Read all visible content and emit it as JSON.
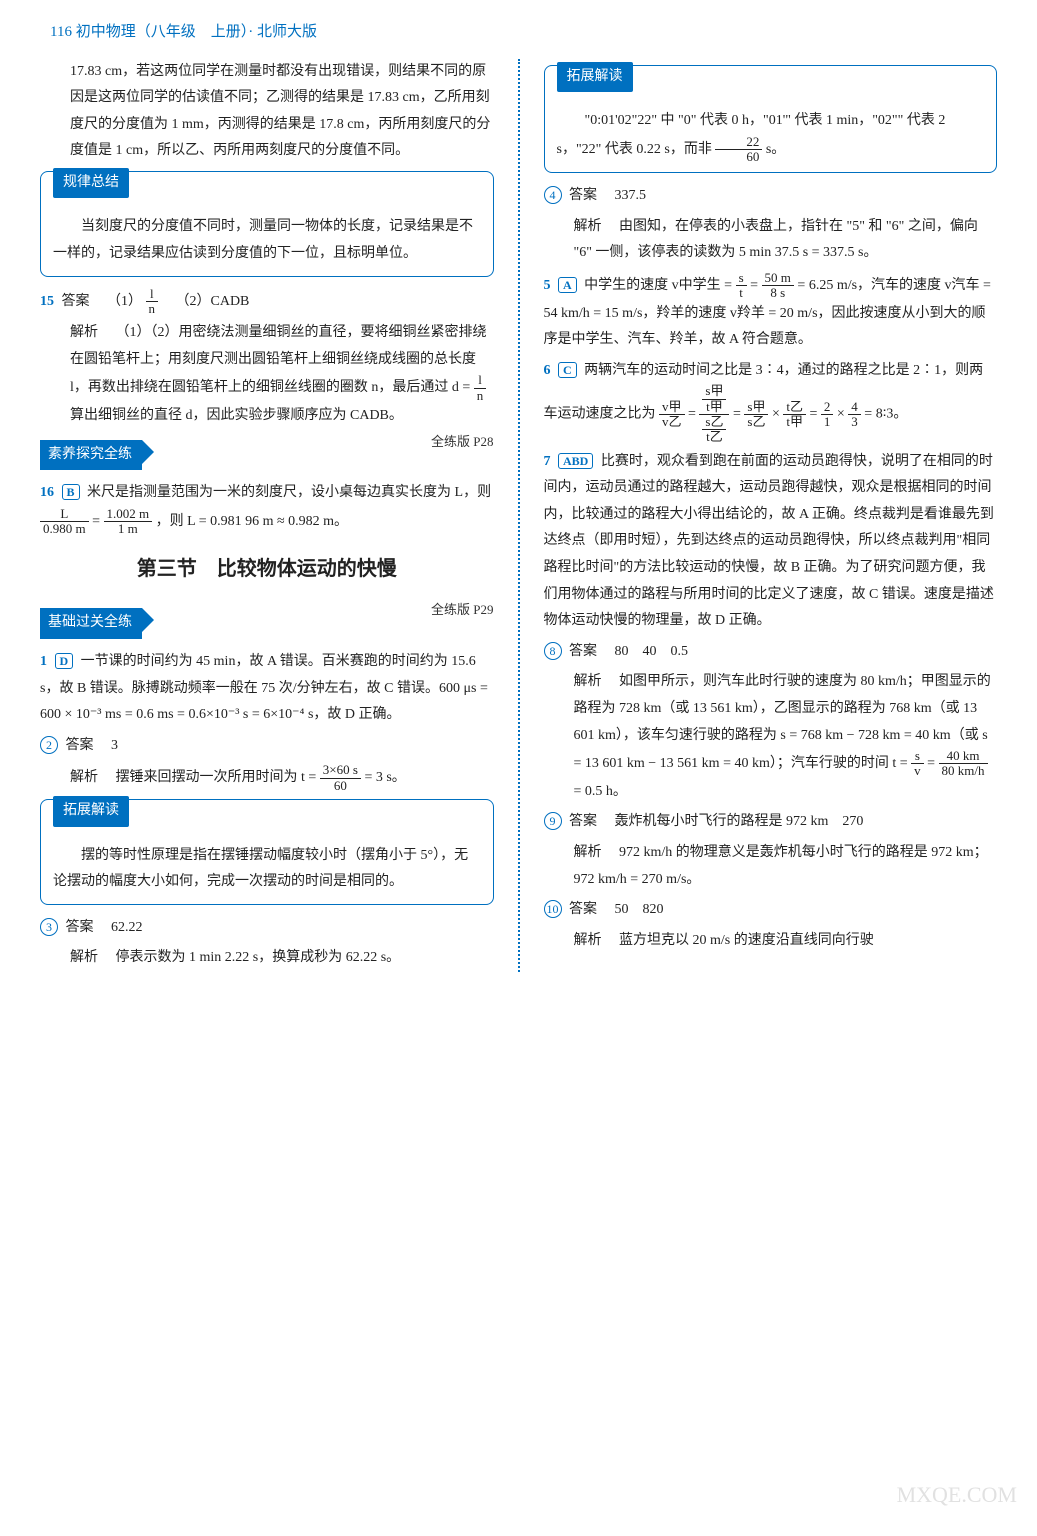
{
  "header": "116 初中物理（八年级　上册）· 北师大版",
  "left": {
    "p1": "17.83 cm，若这两位同学在测量时都没有出现错误，则结果不同的原因是这两位同学的估读值不同；乙测得的结果是 17.83 cm，乙所用刻度尺的分度值为 1 mm，丙测得的结果是 17.8 cm，丙所用刻度尺的分度值是 1 cm，所以乙、丙所用两刻度尺的分度值不同。",
    "box1_tag": "规律总结",
    "box1_text": "当刻度尺的分度值不同时，测量同一物体的长度，记录结果是不一样的，记录结果应估读到分度值的下一位，且标明单位。",
    "q15_num": "15",
    "q15_ans_label": "答案",
    "q15_ans": "（1）",
    "q15_frac_num": "l",
    "q15_frac_den": "n",
    "q15_ans2": "（2）CADB",
    "q15_expl_label": "解析",
    "q15_expl1": "（1）（2）用密绕法测量细铜丝的直径，要将细铜丝紧密排绕在圆铅笔杆上；用刻度尺测出圆铅笔杆上细铜丝绕成线圈的总长度 l，再数出排绕在圆铅笔杆上的细铜丝线圈的圈数 n，最后通过 d = ",
    "q15_expl2": " 算出细铜丝的直径 d，因此实验步骤顺序应为 CADB。",
    "sec1_tag": "素养探究全练",
    "sec1_ref": "全练版 P28",
    "q16_num": "16",
    "q16_let": "B",
    "q16_text1": "米尺是指测量范围为一米的刻度尺，设小桌每边真实长度为 L，则 ",
    "q16_f1n": "L",
    "q16_f1d": "0.980 m",
    "q16_eq": " = ",
    "q16_f2n": "1.002 m",
    "q16_f2d": "1 m",
    "q16_text2": "，则 L = 0.981 96 m ≈ 0.982 m。",
    "section_title": "第三节　比较物体运动的快慢",
    "sec2_tag": "基础过关全练",
    "sec2_ref": "全练版 P29",
    "q1_num": "1",
    "q1_let": "D",
    "q1_text": "一节课的时间约为 45 min，故 A 错误。百米赛跑的时间约为 15.6 s，故 B 错误。脉搏跳动频率一般在 75 次/分钟左右，故 C 错误。600 μs = 600 × 10⁻³ ms = 0.6 ms = 0.6×10⁻³ s = 6×10⁻⁴ s，故 D 正确。",
    "q2_num": "2",
    "q2_ans_label": "答案",
    "q2_ans": "3",
    "q2_expl_label": "解析",
    "q2_expl1": "摆锤来回摆动一次所用时间为 t = ",
    "q2_fn": "3×60 s",
    "q2_fd": "60",
    "q2_expl2": " = 3 s。",
    "box2_tag": "拓展解读",
    "box2_text": "摆的等时性原理是指在摆锤摆动幅度较小时（摆角小于 5°），无论摆动的幅度大小如何，完成一次摆动的时间是相同的。",
    "q3_num": "3",
    "q3_ans_label": "答案",
    "q3_ans": "62.22",
    "q3_expl_label": "解析",
    "q3_expl": "停表示数为 1 min 2.22 s，换算成秒为 62.22 s。"
  },
  "right": {
    "box1_tag": "拓展解读",
    "box1_text1": "\"0:01'02\"22\" 中 \"0\" 代表 0 h，\"01'\" 代表 1 min，\"02\"\" 代表 2 s，\"22\" 代表 0.22 s，而非 ",
    "box1_fn": "22",
    "box1_fd": "60",
    "box1_text2": " s。",
    "q4_num": "4",
    "q4_ans_label": "答案",
    "q4_ans": "337.5",
    "q4_expl_label": "解析",
    "q4_expl": "由图知，在停表的小表盘上，指针在 \"5\" 和 \"6\" 之间，偏向 \"6\" 一侧，该停表的读数为 5 min 37.5 s = 337.5 s。",
    "q5_num": "5",
    "q5_let": "A",
    "q5_text1": "中学生的速度 v中学生 = ",
    "q5_f1n": "s",
    "q5_f1d": "t",
    "q5_eq1": " = ",
    "q5_f2n": "50 m",
    "q5_f2d": "8 s",
    "q5_text2": " = 6.25 m/s，汽车的速度 v汽车 = 54 km/h = 15 m/s，羚羊的速度 v羚羊 = 20 m/s，因此按速度从小到大的顺序是中学生、汽车、羚羊，故 A 符合题意。",
    "q6_num": "6",
    "q6_let": "C",
    "q6_text1": "两辆汽车的运动时间之比是 3∶4，通过的路程之比是 2∶1，则两车运动速度之比为 ",
    "q6_text2": " = 8∶3。",
    "q7_num": "7",
    "q7_let": "ABD",
    "q7_text": "比赛时，观众看到跑在前面的运动员跑得快，说明了在相同的时间内，运动员通过的路程越大，运动员跑得越快，观众是根据相同的时间内，比较通过的路程大小得出结论的，故 A 正确。终点裁判是看谁最先到达终点（即用时短），先到达终点的运动员跑得快，所以终点裁判用\"相同路程比时间\"的方法比较运动的快慢，故 B 正确。为了研究问题方便，我们用物体通过的路程与所用时间的比定义了速度，故 C 错误。速度是描述物体运动快慢的物理量，故 D 正确。",
    "q8_num": "8",
    "q8_ans_label": "答案",
    "q8_ans": "80　40　0.5",
    "q8_expl_label": "解析",
    "q8_expl1": "如图甲所示，则汽车此时行驶的速度为 80 km/h；甲图显示的路程为 728 km（或 13 561 km），乙图显示的路程为 768 km（或 13 601 km），该车匀速行驶的路程为 s = 768 km − 728 km = 40 km（或 s = 13 601 km − 13 561 km = 40 km）；汽车行驶的时间 t = ",
    "q8_f1n": "s",
    "q8_f1d": "v",
    "q8_eq": " = ",
    "q8_f2n": "40 km",
    "q8_f2d": "80 km/h",
    "q8_expl2": " = 0.5 h。",
    "q9_num": "9",
    "q9_ans_label": "答案",
    "q9_ans": "轰炸机每小时飞行的路程是 972 km　270",
    "q9_expl_label": "解析",
    "q9_expl": "972 km/h 的物理意义是轰炸机每小时飞行的路程是 972 km；972 km/h = 270 m/s。",
    "q10_num": "10",
    "q10_ans_label": "答案",
    "q10_ans": "50　820",
    "q10_expl_label": "解析",
    "q10_expl": "蓝方坦克以 20 m/s 的速度沿直线同向行驶"
  },
  "watermark": "MXQE.COM"
}
